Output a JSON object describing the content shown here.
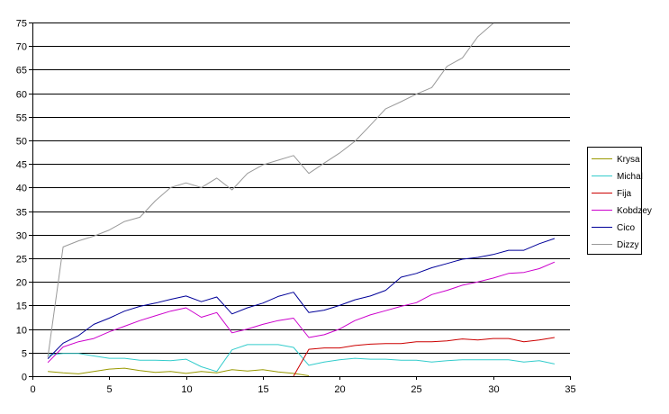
{
  "chart_data": {
    "type": "line",
    "title": "",
    "xlabel": "",
    "ylabel": "",
    "xlim": [
      0,
      35
    ],
    "ylim": [
      0,
      75
    ],
    "xticks": [
      0,
      5,
      10,
      15,
      20,
      25,
      30,
      35
    ],
    "yticks": [
      0,
      5,
      10,
      15,
      20,
      25,
      30,
      35,
      40,
      45,
      50,
      55,
      60,
      65,
      70,
      75
    ],
    "grid": "horizontal",
    "legend_position": "right",
    "x": [
      1,
      2,
      3,
      4,
      5,
      6,
      7,
      8,
      9,
      10,
      11,
      12,
      13,
      14,
      15,
      16,
      17,
      18,
      19,
      20,
      21,
      22,
      23,
      24,
      25,
      26,
      27,
      28,
      29,
      30,
      31,
      32,
      33,
      34
    ],
    "series": [
      {
        "name": "Krysa",
        "color": "#999900",
        "values": [
          1,
          0.7,
          0.5,
          1,
          1.5,
          1.7,
          1.2,
          0.8,
          1,
          0.6,
          1,
          0.7,
          1.4,
          1.1,
          1.4,
          0.9,
          0.6,
          0.1,
          null,
          null,
          null,
          null,
          null,
          null,
          null,
          null,
          null,
          null,
          null,
          null,
          null,
          null,
          null,
          null
        ]
      },
      {
        "name": "Michal",
        "color": "#33CCCC",
        "values": [
          4.5,
          4.8,
          4.8,
          4.3,
          3.8,
          3.8,
          3.4,
          3.4,
          3.3,
          3.6,
          2,
          1,
          5.6,
          6.7,
          6.7,
          6.7,
          6.1,
          2.3,
          3,
          3.5,
          3.8,
          3.6,
          3.6,
          3.4,
          3.4,
          3,
          3.3,
          3.5,
          3.5,
          3.5,
          3.5,
          3,
          3.3,
          2.6
        ]
      },
      {
        "name": "Fija",
        "color": "#CC0000",
        "values": [
          null,
          null,
          null,
          null,
          null,
          null,
          null,
          null,
          null,
          null,
          null,
          null,
          null,
          null,
          null,
          null,
          0,
          5.7,
          6,
          6,
          6.5,
          6.8,
          6.9,
          6.9,
          7.3,
          7.3,
          7.5,
          7.9,
          7.7,
          8,
          8,
          7.3,
          7.7,
          8.2
        ]
      },
      {
        "name": "Kobdzey",
        "color": "#CC00CC",
        "values": [
          2.9,
          6.2,
          7.3,
          8,
          9.4,
          10.6,
          11.8,
          12.8,
          13.8,
          14.5,
          12.5,
          13.5,
          9.2,
          10,
          11,
          11.8,
          12.3,
          8.2,
          8.8,
          10,
          11.8,
          13,
          13.9,
          14.8,
          15.6,
          17.3,
          18.2,
          19.3,
          20,
          20.8,
          21.8,
          22,
          22.8,
          24.2
        ]
      },
      {
        "name": "Cico",
        "color": "#000099",
        "values": [
          3.7,
          7,
          8.6,
          11,
          12.3,
          13.8,
          14.8,
          15.5,
          16.3,
          17,
          15.8,
          16.8,
          13.2,
          14.5,
          15.5,
          16.9,
          17.8,
          13.5,
          14,
          15,
          16.2,
          17,
          18.2,
          21,
          21.8,
          23,
          23.9,
          24.8,
          25.2,
          25.8,
          26.7,
          26.7,
          28.1,
          29.2
        ]
      },
      {
        "name": "Dizzy",
        "color": "#999999",
        "values": [
          4,
          27.4,
          28.7,
          29.7,
          31,
          32.8,
          33.7,
          37.2,
          40,
          41,
          40,
          42,
          39.5,
          43,
          44.8,
          45.8,
          46.8,
          43,
          45.2,
          47.3,
          49.8,
          53.2,
          56.7,
          58.2,
          59.8,
          61.2,
          65.7,
          67.5,
          72,
          74.8,
          null,
          null,
          null,
          null
        ]
      }
    ]
  }
}
